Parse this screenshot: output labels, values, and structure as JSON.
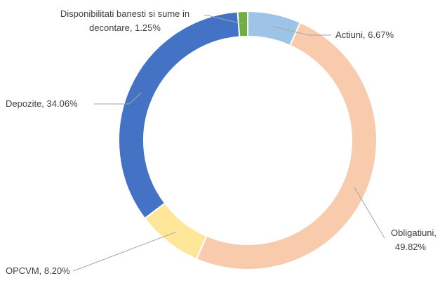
{
  "chart_data": {
    "type": "pie",
    "subtype": "doughnut",
    "title": "",
    "categories": [
      "Actiuni",
      "Obligatiuni",
      "OPCVM",
      "Depozite",
      "Disponibilitati banesti si sume in decontare"
    ],
    "values": [
      6.67,
      49.82,
      8.2,
      34.06,
      1.25
    ],
    "colors": [
      "#9dc3e6",
      "#f8cbad",
      "#ffe699",
      "#4472c4",
      "#70ad47"
    ],
    "labels": [
      {
        "lines": [
          "Actiuni, 6.67%"
        ]
      },
      {
        "lines": [
          "Obligatiuni,",
          "49.82%"
        ]
      },
      {
        "lines": [
          "OPCVM, 8.20%"
        ]
      },
      {
        "lines": [
          "Depozite, 34.06%"
        ]
      },
      {
        "lines": [
          "Disponibilitati banesti si sume in",
          "decontare, 1.25%"
        ]
      }
    ],
    "legend": "none"
  }
}
